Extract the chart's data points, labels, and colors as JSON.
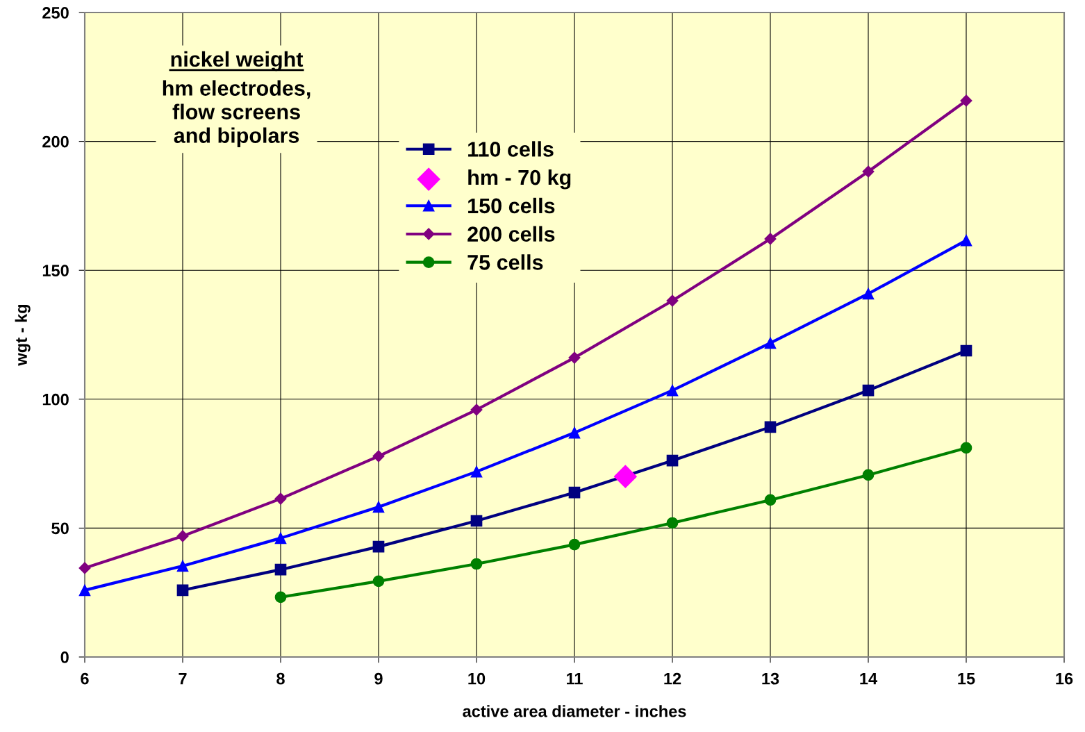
{
  "chart_data": {
    "type": "line",
    "xlabel": "active area diameter - inches",
    "ylabel": "wgt - kg",
    "annotations": [
      "nickel weight",
      "hm electrodes,\nflow screens\nand bipolars"
    ],
    "xlim": [
      6,
      16
    ],
    "xticks": [
      6,
      7,
      8,
      9,
      10,
      11,
      12,
      13,
      14,
      15,
      16
    ],
    "ylim": [
      0,
      250
    ],
    "yticks": [
      0,
      50,
      100,
      150,
      200,
      250
    ],
    "grid": true,
    "legend": "top",
    "line_style": "solid",
    "series": [
      {
        "name": "110 cells",
        "color": "#000080",
        "marker": "square",
        "x": [
          7,
          8,
          9,
          10,
          11,
          12,
          13,
          14,
          15
        ],
        "values": [
          25.9,
          33.9,
          42.8,
          52.8,
          63.8,
          76.2,
          89.2,
          103.4,
          118.8
        ]
      },
      {
        "name": "hm - 70 kg",
        "type": "scatter",
        "color": "#ff00ff",
        "marker": "diamond",
        "x": [
          11.52
        ],
        "values": [
          70
        ]
      },
      {
        "name": "150 cells",
        "color": "#0000ff",
        "marker": "triangle",
        "x": [
          6,
          7,
          8,
          9,
          10,
          11,
          12,
          13,
          14,
          15
        ],
        "values": [
          25.9,
          35.3,
          46.1,
          58.2,
          71.9,
          87.0,
          103.4,
          121.8,
          140.9,
          161.6
        ]
      },
      {
        "name": "200 cells",
        "color": "#800080",
        "marker": "diamond",
        "x": [
          6,
          7,
          8,
          9,
          10,
          11,
          12,
          13,
          14,
          15
        ],
        "values": [
          34.5,
          46.9,
          61.4,
          77.9,
          95.9,
          116.1,
          138.2,
          162.2,
          188.3,
          215.8
        ]
      },
      {
        "name": "75 cells",
        "color": "#008000",
        "marker": "circle",
        "x": [
          8,
          9,
          10,
          11,
          12,
          13,
          14,
          15
        ],
        "values": [
          23.2,
          29.4,
          36.1,
          43.6,
          52.0,
          60.9,
          70.6,
          81.1
        ]
      }
    ]
  }
}
